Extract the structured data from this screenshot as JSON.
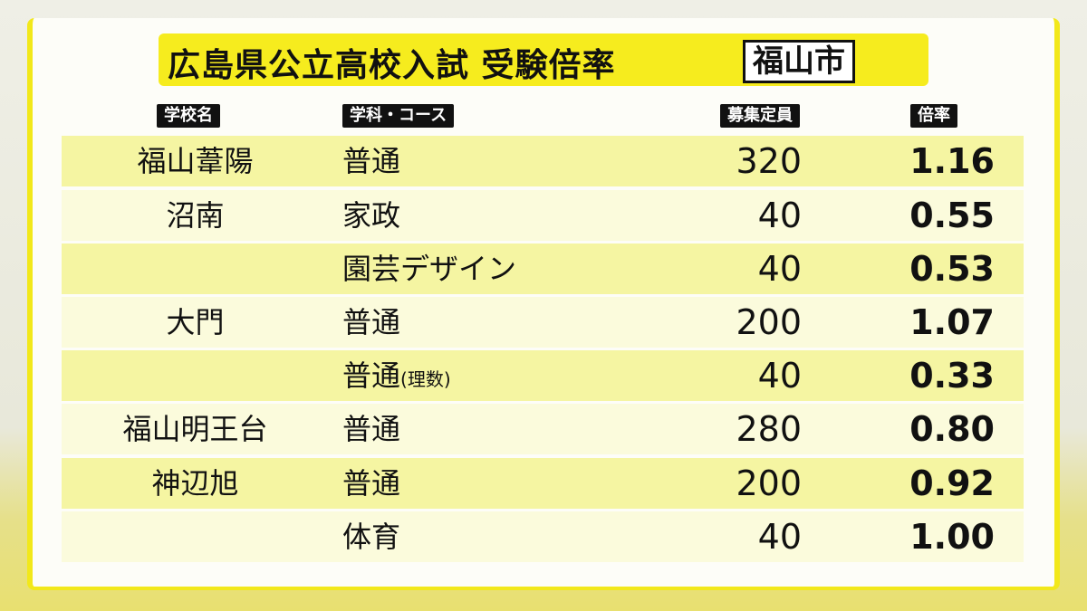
{
  "title": "広島県公立高校入試 受験倍率",
  "city": "福山市",
  "headers": {
    "school": "学校名",
    "dept": "学科・コース",
    "capacity": "募集定員",
    "ratio": "倍率"
  },
  "colors": {
    "accent_yellow": "#f6ec1e",
    "row_dark": "#f5f5a2",
    "row_light": "#fbfbdc"
  },
  "rows": [
    {
      "school": "福山葦陽",
      "dept": "普通",
      "note": "",
      "capacity": "320",
      "ratio": "1.16"
    },
    {
      "school": "沼南",
      "dept": "家政",
      "note": "",
      "capacity": "40",
      "ratio": "0.55"
    },
    {
      "school": "",
      "dept": "園芸デザイン",
      "note": "",
      "capacity": "40",
      "ratio": "0.53"
    },
    {
      "school": "大門",
      "dept": "普通",
      "note": "",
      "capacity": "200",
      "ratio": "1.07"
    },
    {
      "school": "",
      "dept": "普通",
      "note": "(理数)",
      "capacity": "40",
      "ratio": "0.33"
    },
    {
      "school": "福山明王台",
      "dept": "普通",
      "note": "",
      "capacity": "280",
      "ratio": "0.80"
    },
    {
      "school": "神辺旭",
      "dept": "普通",
      "note": "",
      "capacity": "200",
      "ratio": "0.92"
    },
    {
      "school": "",
      "dept": "体育",
      "note": "",
      "capacity": "40",
      "ratio": "1.00"
    }
  ]
}
